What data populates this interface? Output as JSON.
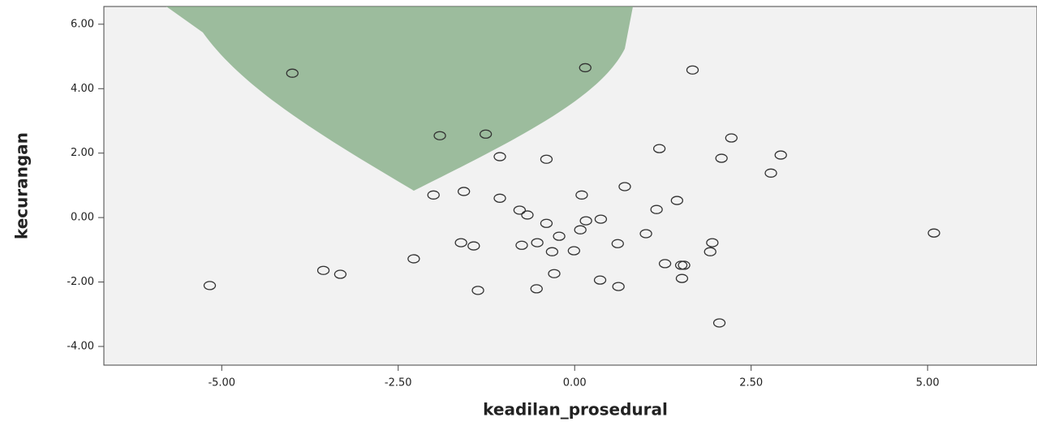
{
  "chart_data": {
    "type": "scatter",
    "x_label": "keadilan_prosedural",
    "y_label": "kecurangan",
    "color": "#333333",
    "xlim": [
      -6.67,
      6.55
    ],
    "ylim": [
      -4.58,
      6.55
    ],
    "xticks": [
      {
        "value": -5,
        "label": "-5.00"
      },
      {
        "value": -2.5,
        "label": "-2.50"
      },
      {
        "value": 0,
        "label": "0.00"
      },
      {
        "value": 2.5,
        "label": "2.50"
      },
      {
        "value": 5,
        "label": "5.00"
      }
    ],
    "yticks": [
      {
        "value": -4,
        "label": "-4.00"
      },
      {
        "value": -2,
        "label": "-2.00"
      },
      {
        "value": 0,
        "label": "0.00"
      },
      {
        "value": 2,
        "label": "2.00"
      },
      {
        "value": 4,
        "label": "4.00"
      },
      {
        "value": 6,
        "label": "6.00"
      }
    ],
    "x": [
      -4.0,
      0.15,
      1.67,
      -1.91,
      -1.26,
      -1.06,
      -0.4,
      1.2,
      2.22,
      2.08,
      2.92,
      2.78,
      -2.0,
      -1.57,
      -1.06,
      0.1,
      0.71,
      1.45,
      -0.78,
      -0.67,
      1.16,
      -0.4,
      0.16,
      0.37,
      -0.22,
      0.08,
      1.01,
      -1.61,
      -1.43,
      -0.75,
      -0.53,
      -0.32,
      -0.01,
      0.61,
      1.95,
      1.92,
      5.09,
      -2.28,
      -3.56,
      -3.32,
      -5.17,
      -1.37,
      -0.54,
      -0.29,
      0.36,
      0.62,
      1.28,
      1.51,
      1.55,
      1.52,
      2.05
    ],
    "y": [
      4.48,
      4.65,
      4.58,
      2.54,
      2.59,
      1.89,
      1.81,
      2.14,
      2.47,
      1.84,
      1.94,
      1.38,
      0.7,
      0.81,
      0.6,
      0.7,
      0.96,
      0.53,
      0.23,
      0.08,
      0.25,
      -0.18,
      -0.1,
      -0.05,
      -0.58,
      -0.38,
      -0.5,
      -0.78,
      -0.88,
      -0.86,
      -0.78,
      -1.06,
      -1.03,
      -0.81,
      -0.78,
      -1.06,
      -0.48,
      -1.28,
      -1.64,
      -1.76,
      -2.11,
      -2.26,
      -2.21,
      -1.74,
      -1.94,
      -2.14,
      -1.43,
      -1.48,
      -1.48,
      -1.89,
      -3.27
    ]
  }
}
